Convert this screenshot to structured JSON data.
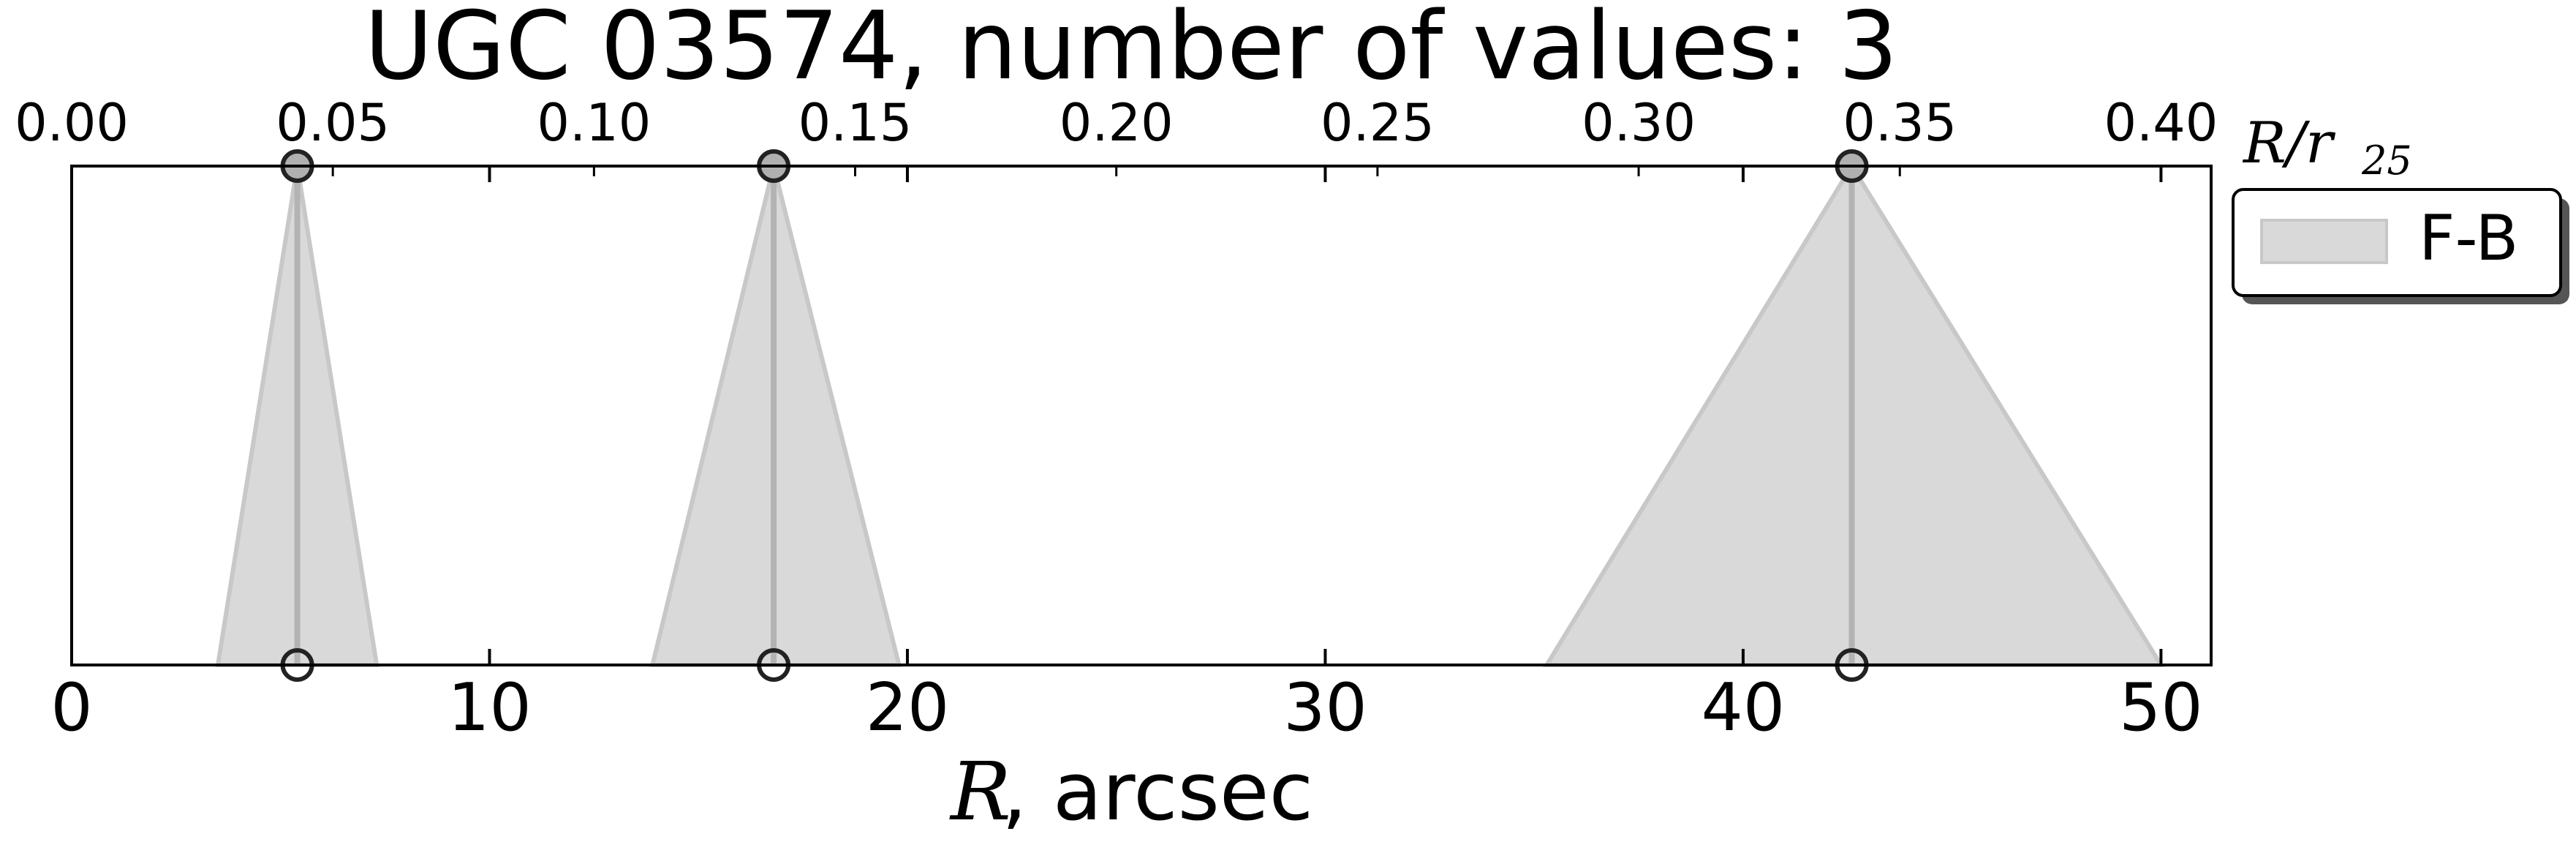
{
  "chart_data": {
    "type": "area",
    "title": "UGC 03574, number of values: 3",
    "xlabel_var": "R",
    "xlabel_unit": ", arcsec",
    "top_xlabel_var": "R/r",
    "top_xlabel_sub": "25",
    "xlim": [
      0,
      51.2
    ],
    "top_xlim": [
      0,
      0.4096
    ],
    "xticks": [
      0,
      10,
      20,
      30,
      40,
      50
    ],
    "xtick_labels": [
      "0",
      "10",
      "20",
      "30",
      "40",
      "50"
    ],
    "top_xticks": [
      0.0,
      0.05,
      0.1,
      0.15,
      0.2,
      0.25,
      0.3,
      0.35,
      0.4
    ],
    "top_xtick_labels": [
      "0.00",
      "0.05",
      "0.10",
      "0.15",
      "0.20",
      "0.25",
      "0.30",
      "0.35",
      "0.40"
    ],
    "grid": false,
    "legend_position": "outside-top-right",
    "series": [
      {
        "name": "F-B",
        "color": "#d9d9d9",
        "edge_color": "#c8c8c8",
        "line_color": "#b3b3b3",
        "points": [
          {
            "r": 5.4,
            "r_left": 3.5,
            "r_right": 7.3
          },
          {
            "r": 16.8,
            "r_left": 13.9,
            "r_right": 19.8
          },
          {
            "r": 42.6,
            "r_left": 35.3,
            "r_right": 50.0
          }
        ]
      }
    ]
  }
}
